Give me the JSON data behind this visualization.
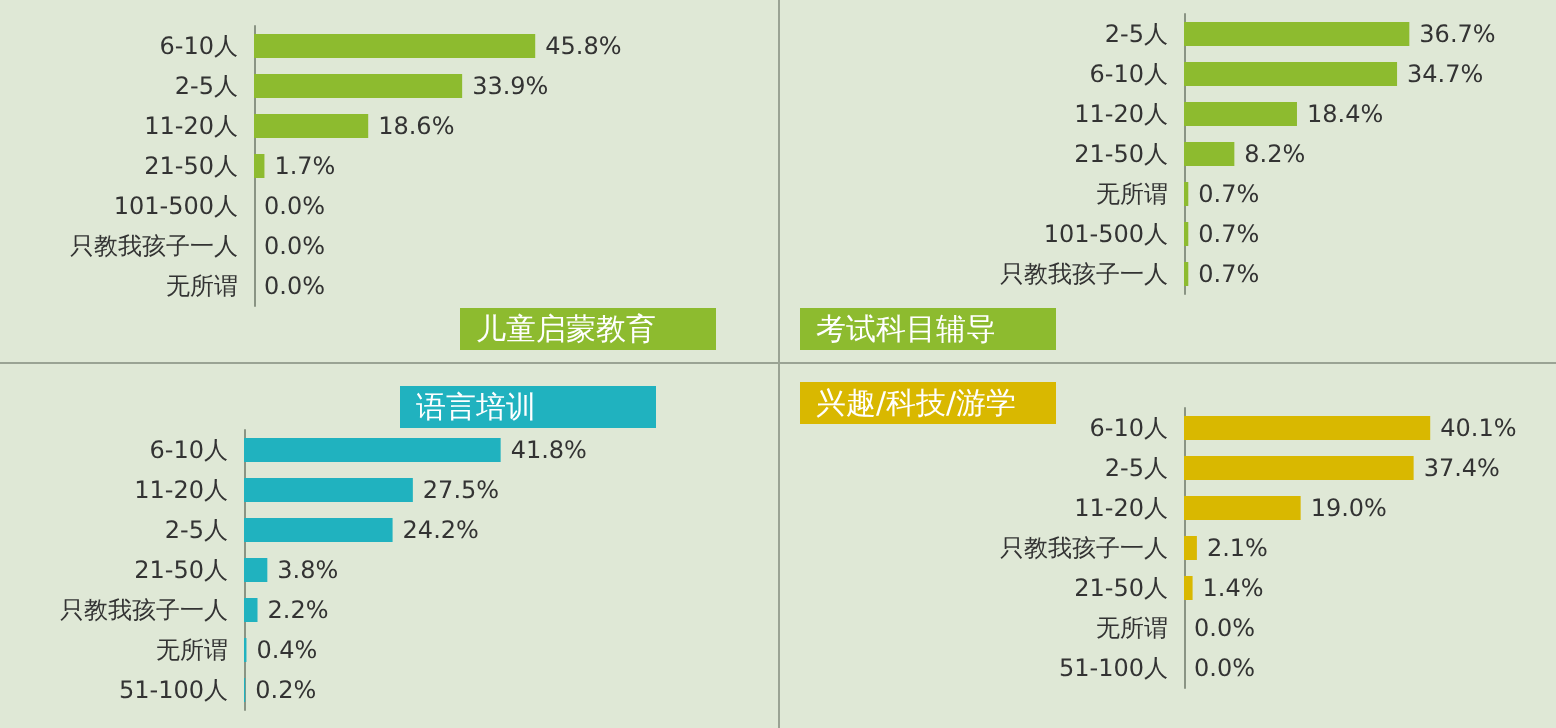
{
  "chart_data": [
    {
      "type": "bar",
      "orientation": "horizontal",
      "title": "儿童启蒙教育",
      "categories": [
        "6-10人",
        "2-5人",
        "11-20人",
        "21-50人",
        "101-500人",
        "只教我孩子一人",
        "无所谓"
      ],
      "values": [
        45.8,
        33.9,
        18.6,
        1.7,
        0.0,
        0.0,
        0.0
      ],
      "value_labels": [
        "45.8%",
        "33.9%",
        "18.6%",
        "1.7%",
        "0.0%",
        "0.0%",
        "0.0%"
      ],
      "color": "#8dbb2f"
    },
    {
      "type": "bar",
      "orientation": "horizontal",
      "title": "考试科目辅导",
      "categories": [
        "2-5人",
        "6-10人",
        "11-20人",
        "21-50人",
        "无所谓",
        "101-500人",
        "只教我孩子一人"
      ],
      "values": [
        36.7,
        34.7,
        18.4,
        8.2,
        0.7,
        0.7,
        0.7
      ],
      "value_labels": [
        "36.7%",
        "34.7%",
        "18.4%",
        "8.2%",
        "0.7%",
        "0.7%",
        "0.7%"
      ],
      "color": "#8dbb2f"
    },
    {
      "type": "bar",
      "orientation": "horizontal",
      "title": "语言培训",
      "categories": [
        "6-10人",
        "11-20人",
        "2-5人",
        "21-50人",
        "只教我孩子一人",
        "无所谓",
        "51-100人"
      ],
      "values": [
        41.8,
        27.5,
        24.2,
        3.8,
        2.2,
        0.4,
        0.2
      ],
      "value_labels": [
        "41.8%",
        "27.5%",
        "24.2%",
        "3.8%",
        "2.2%",
        "0.4%",
        "0.2%"
      ],
      "color": "#20b2bf"
    },
    {
      "type": "bar",
      "orientation": "horizontal",
      "title": "兴趣/科技/游学",
      "categories": [
        "6-10人",
        "2-5人",
        "11-20人",
        "只教我孩子一人",
        "21-50人",
        "无所谓",
        "51-100人"
      ],
      "values": [
        40.1,
        37.4,
        19.0,
        2.1,
        1.4,
        0.0,
        0.0
      ],
      "value_labels": [
        "40.1%",
        "37.4%",
        "19.0%",
        "2.1%",
        "1.4%",
        "0.0%",
        "0.0%"
      ],
      "color": "#d9b800"
    }
  ]
}
